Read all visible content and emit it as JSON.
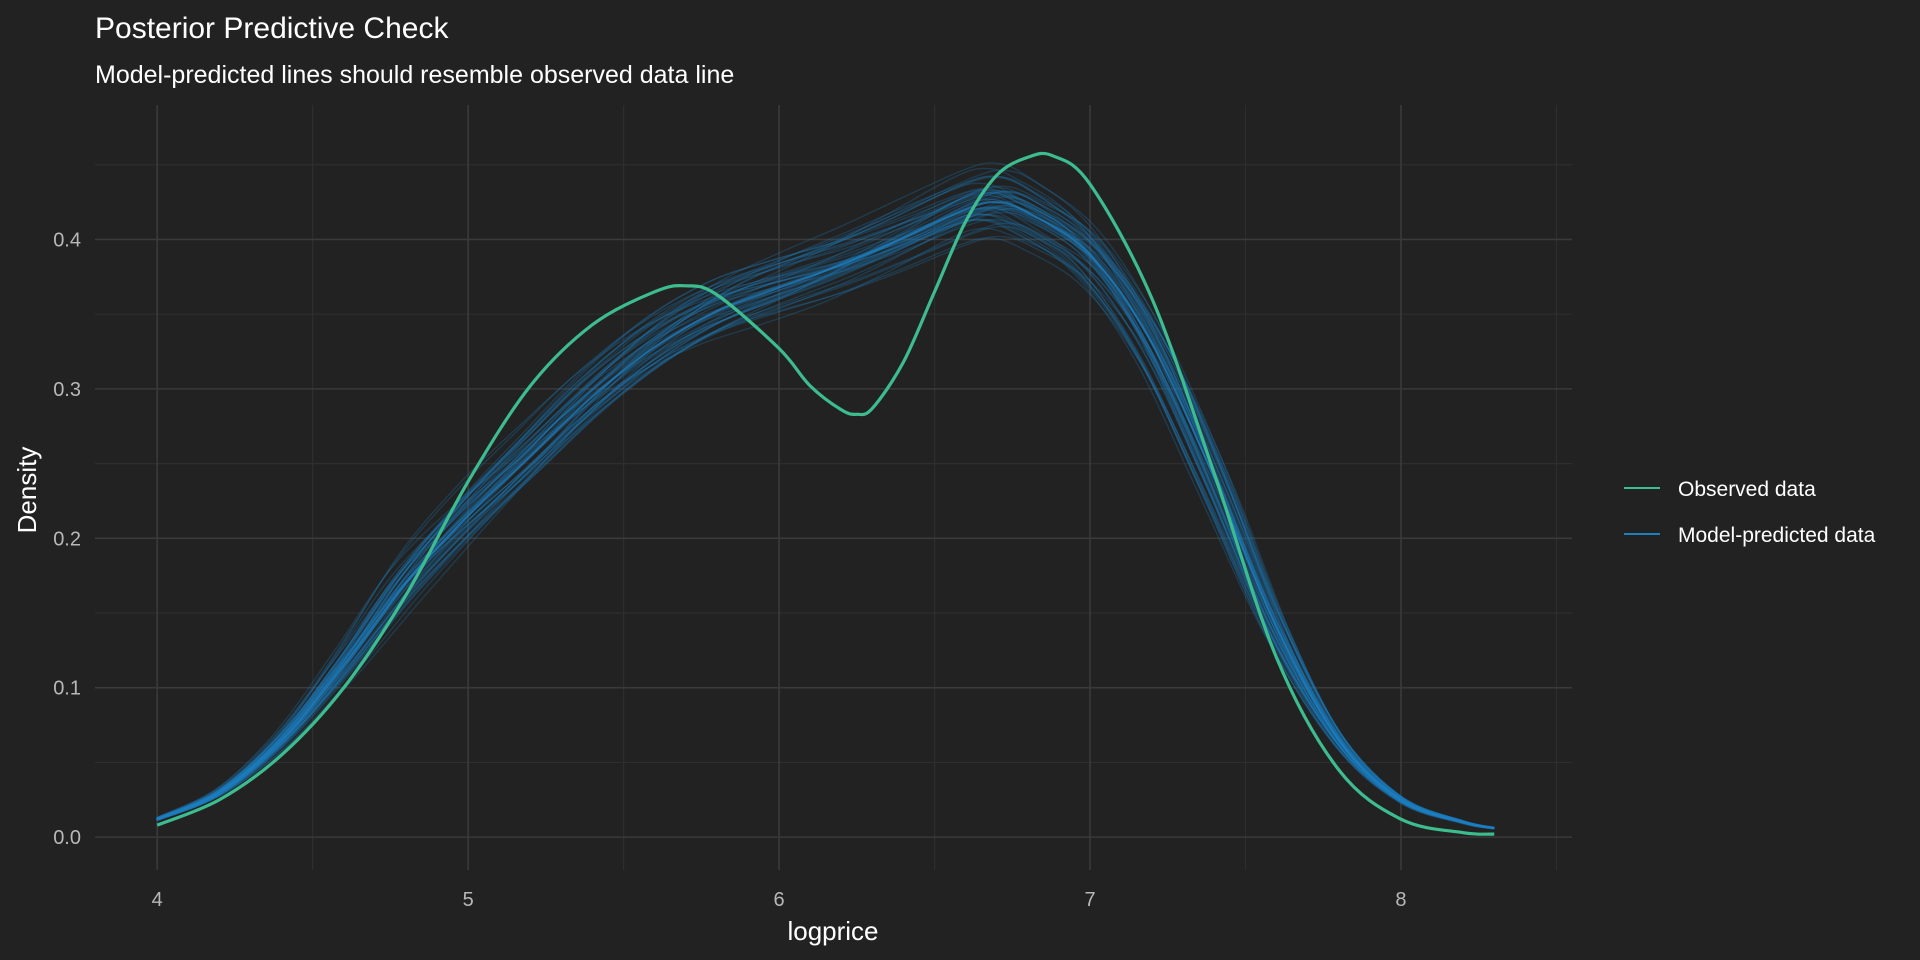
{
  "chart_data": {
    "type": "line",
    "title": "Posterior Predictive Check",
    "subtitle": "Model-predicted lines should resemble observed data line",
    "xlabel": "logprice",
    "ylabel": "Density",
    "xlim": [
      3.8,
      8.55
    ],
    "ylim": [
      -0.022,
      0.49
    ],
    "x_ticks": [
      4,
      5,
      6,
      7,
      8
    ],
    "y_ticks": [
      0.0,
      0.1,
      0.2,
      0.3,
      0.4
    ],
    "x_tick_labels": [
      "4",
      "5",
      "6",
      "7",
      "8"
    ],
    "y_tick_labels": [
      "0.0",
      "0.1",
      "0.2",
      "0.3",
      "0.4"
    ],
    "grid": true,
    "legend_position": "right",
    "colors": {
      "background": "#222222",
      "grid_major": "#3a3a3a",
      "grid_minor": "#2e2e2e",
      "observed": "#3dbd8f",
      "predicted": "#1e7fc0"
    },
    "series": [
      {
        "name": "Observed data",
        "color": "#3dbd8f",
        "x": [
          4.0,
          4.2,
          4.4,
          4.6,
          4.8,
          5.0,
          5.2,
          5.4,
          5.6,
          5.7,
          5.8,
          6.0,
          6.1,
          6.2,
          6.25,
          6.3,
          6.4,
          6.5,
          6.6,
          6.7,
          6.8,
          6.88,
          7.0,
          7.2,
          7.4,
          7.6,
          7.8,
          8.0,
          8.2,
          8.3
        ],
        "y": [
          0.008,
          0.025,
          0.055,
          0.1,
          0.162,
          0.238,
          0.302,
          0.343,
          0.365,
          0.369,
          0.363,
          0.327,
          0.302,
          0.286,
          0.283,
          0.287,
          0.318,
          0.365,
          0.412,
          0.443,
          0.455,
          0.456,
          0.437,
          0.36,
          0.243,
          0.12,
          0.045,
          0.012,
          0.003,
          0.002
        ]
      },
      {
        "name": "Model-predicted data",
        "color": "#1e7fc0",
        "x": [
          4.0,
          4.2,
          4.4,
          4.6,
          4.8,
          5.0,
          5.2,
          5.4,
          5.6,
          5.8,
          6.0,
          6.2,
          6.4,
          6.6,
          6.7,
          6.8,
          7.0,
          7.2,
          7.4,
          7.6,
          7.8,
          8.0,
          8.2,
          8.3
        ],
        "y": [
          0.012,
          0.03,
          0.065,
          0.115,
          0.17,
          0.215,
          0.255,
          0.295,
          0.328,
          0.352,
          0.368,
          0.383,
          0.401,
          0.42,
          0.425,
          0.418,
          0.39,
          0.33,
          0.24,
          0.14,
          0.065,
          0.025,
          0.01,
          0.006
        ]
      }
    ]
  }
}
